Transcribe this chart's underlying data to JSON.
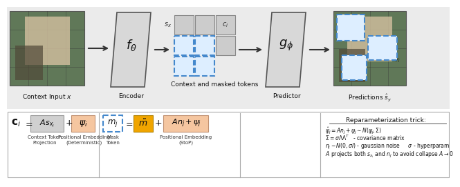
{
  "bg_color": "#ffffff",
  "top_panel_bg": "#ebebeb",
  "orange_light": "#f5c6a0",
  "orange_dark": "#f0a500",
  "blue_dashed": "#4488cc",
  "text_color": "#111111",
  "encoder_label": "Encoder",
  "predictor_label": "Predictor",
  "context_input": "Context Input $x$",
  "context_masked": "Context and masked tokens",
  "predictions": "Predictions $\\hat{s}_y$",
  "reparam_title": "Reparameterization trick:",
  "reparam_line1": "$\\hat{\\psi}_j = An_j + \\psi_j \\sim N(\\psi_j, \\Sigma)$",
  "reparam_line2": "$\\Sigma = \\sigma\\Lambda\\Lambda^T$   - covariance matrix",
  "reparam_line3": "$n_j \\sim N(0, \\sigma I)$ - gaussian noise     $\\sigma$ - hyperparam",
  "reparam_line4": "$A$ projects both $s_{x_i}$ and $n_j$ to avoid collapse $A \\to 0$"
}
